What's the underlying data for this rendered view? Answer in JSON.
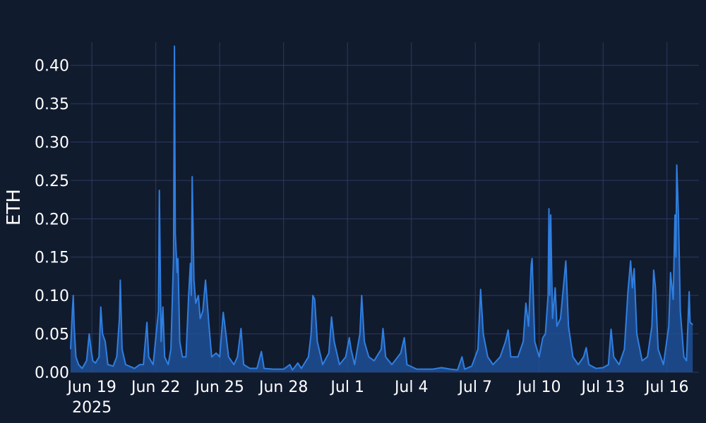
{
  "colors": {
    "background": "#111b2e",
    "line": "#2f7fe0",
    "fill": "#1f4f96",
    "grid": "#2b3b5e",
    "text": "#ffffff"
  },
  "chart_data": {
    "type": "area",
    "title": "",
    "xlabel": "",
    "ylabel": "ETH",
    "grid": true,
    "legend": "none",
    "xlim": [
      "2025-06-18T00:00",
      "2025-07-17T12:00"
    ],
    "ylim": [
      0,
      0.43
    ],
    "x_ticks": [
      {
        "label": "Jun 19",
        "date": "2025-06-19"
      },
      {
        "label": "Jun 22",
        "date": "2025-06-22"
      },
      {
        "label": "Jun 25",
        "date": "2025-06-25"
      },
      {
        "label": "Jun 28",
        "date": "2025-06-28"
      },
      {
        "label": "Jul 1",
        "date": "2025-07-01"
      },
      {
        "label": "Jul 4",
        "date": "2025-07-04"
      },
      {
        "label": "Jul 7",
        "date": "2025-07-07"
      },
      {
        "label": "Jul 10",
        "date": "2025-07-10"
      },
      {
        "label": "Jul 13",
        "date": "2025-07-13"
      },
      {
        "label": "Jul 16",
        "date": "2025-07-16"
      }
    ],
    "x_year_label": "2025",
    "y_ticks": [
      "0.00",
      "0.05",
      "0.10",
      "0.15",
      "0.20",
      "0.25",
      "0.30",
      "0.35",
      "0.40"
    ],
    "y_tick_values": [
      0,
      0.05,
      0.1,
      0.15,
      0.2,
      0.25,
      0.3,
      0.35,
      0.4
    ],
    "series": [
      {
        "points": [
          [
            "2025-06-18T00:00",
            0.03
          ],
          [
            "2025-06-18T02:00",
            0.08
          ],
          [
            "2025-06-18T03:00",
            0.1
          ],
          [
            "2025-06-18T04:00",
            0.06
          ],
          [
            "2025-06-18T06:00",
            0.02
          ],
          [
            "2025-06-18T09:00",
            0.01
          ],
          [
            "2025-06-18T13:00",
            0.005
          ],
          [
            "2025-06-18T18:00",
            0.015
          ],
          [
            "2025-06-18T21:00",
            0.05
          ],
          [
            "2025-06-18T23:00",
            0.03
          ],
          [
            "2025-06-19T01:00",
            0.015
          ],
          [
            "2025-06-19T04:00",
            0.012
          ],
          [
            "2025-06-19T08:00",
            0.02
          ],
          [
            "2025-06-19T10:00",
            0.085
          ],
          [
            "2025-06-19T12:00",
            0.05
          ],
          [
            "2025-06-19T15:00",
            0.04
          ],
          [
            "2025-06-19T18:00",
            0.01
          ],
          [
            "2025-06-20T00:00",
            0.008
          ],
          [
            "2025-06-20T04:00",
            0.02
          ],
          [
            "2025-06-20T07:00",
            0.07
          ],
          [
            "2025-06-20T08:00",
            0.12
          ],
          [
            "2025-06-20T10:00",
            0.03
          ],
          [
            "2025-06-20T14:00",
            0.01
          ],
          [
            "2025-06-21T00:00",
            0.005
          ],
          [
            "2025-06-21T06:00",
            0.01
          ],
          [
            "2025-06-21T10:00",
            0.01
          ],
          [
            "2025-06-21T14:00",
            0.065
          ],
          [
            "2025-06-21T16:00",
            0.02
          ],
          [
            "2025-06-21T21:00",
            0.01
          ],
          [
            "2025-06-22T03:00",
            0.08
          ],
          [
            "2025-06-22T04:00",
            0.237
          ],
          [
            "2025-06-22T06:00",
            0.04
          ],
          [
            "2025-06-22T08:00",
            0.085
          ],
          [
            "2025-06-22T10:00",
            0.02
          ],
          [
            "2025-06-22T14:00",
            0.01
          ],
          [
            "2025-06-22T17:00",
            0.03
          ],
          [
            "2025-06-22T20:00",
            0.15
          ],
          [
            "2025-06-22T21:00",
            0.425
          ],
          [
            "2025-06-22T22:00",
            0.18
          ],
          [
            "2025-06-23T00:00",
            0.13
          ],
          [
            "2025-06-23T01:00",
            0.148
          ],
          [
            "2025-06-23T03:00",
            0.04
          ],
          [
            "2025-06-23T06:00",
            0.02
          ],
          [
            "2025-06-23T10:00",
            0.02
          ],
          [
            "2025-06-23T13:00",
            0.1
          ],
          [
            "2025-06-23T15:00",
            0.142
          ],
          [
            "2025-06-23T16:00",
            0.1
          ],
          [
            "2025-06-23T17:00",
            0.255
          ],
          [
            "2025-06-23T19:00",
            0.12
          ],
          [
            "2025-06-23T21:00",
            0.09
          ],
          [
            "2025-06-24T00:00",
            0.1
          ],
          [
            "2025-06-24T02:00",
            0.07
          ],
          [
            "2025-06-24T05:00",
            0.08
          ],
          [
            "2025-06-24T08:00",
            0.12
          ],
          [
            "2025-06-24T12:00",
            0.06
          ],
          [
            "2025-06-24T15:00",
            0.02
          ],
          [
            "2025-06-24T20:00",
            0.025
          ],
          [
            "2025-06-25T00:00",
            0.02
          ],
          [
            "2025-06-25T04:00",
            0.078
          ],
          [
            "2025-06-25T07:00",
            0.05
          ],
          [
            "2025-06-25T10:00",
            0.02
          ],
          [
            "2025-06-25T16:00",
            0.01
          ],
          [
            "2025-06-25T20:00",
            0.02
          ],
          [
            "2025-06-26T00:00",
            0.057
          ],
          [
            "2025-06-26T03:00",
            0.01
          ],
          [
            "2025-06-26T10:00",
            0.005
          ],
          [
            "2025-06-26T18:00",
            0.005
          ],
          [
            "2025-06-26T23:00",
            0.027
          ],
          [
            "2025-06-27T02:00",
            0.005
          ],
          [
            "2025-06-27T12:00",
            0.004
          ],
          [
            "2025-06-28T00:00",
            0.004
          ],
          [
            "2025-06-28T07:00",
            0.01
          ],
          [
            "2025-06-28T10:00",
            0.003
          ],
          [
            "2025-06-28T16:00",
            0.012
          ],
          [
            "2025-06-28T20:00",
            0.005
          ],
          [
            "2025-06-29T04:00",
            0.02
          ],
          [
            "2025-06-29T07:00",
            0.05
          ],
          [
            "2025-06-29T09:00",
            0.1
          ],
          [
            "2025-06-29T11:00",
            0.095
          ],
          [
            "2025-06-29T14:00",
            0.04
          ],
          [
            "2025-06-29T20:00",
            0.01
          ],
          [
            "2025-06-30T03:00",
            0.025
          ],
          [
            "2025-06-30T06:00",
            0.072
          ],
          [
            "2025-06-30T09:00",
            0.04
          ],
          [
            "2025-06-30T15:00",
            0.01
          ],
          [
            "2025-06-30T22:00",
            0.02
          ],
          [
            "2025-07-01T02:00",
            0.045
          ],
          [
            "2025-07-01T04:00",
            0.03
          ],
          [
            "2025-07-01T08:00",
            0.01
          ],
          [
            "2025-07-01T14:00",
            0.05
          ],
          [
            "2025-07-01T16:00",
            0.1
          ],
          [
            "2025-07-01T19:00",
            0.04
          ],
          [
            "2025-07-02T00:00",
            0.02
          ],
          [
            "2025-07-02T06:00",
            0.015
          ],
          [
            "2025-07-02T14:00",
            0.03
          ],
          [
            "2025-07-02T16:00",
            0.057
          ],
          [
            "2025-07-02T19:00",
            0.02
          ],
          [
            "2025-07-03T02:00",
            0.01
          ],
          [
            "2025-07-03T12:00",
            0.025
          ],
          [
            "2025-07-03T16:00",
            0.045
          ],
          [
            "2025-07-03T19:00",
            0.01
          ],
          [
            "2025-07-04T06:00",
            0.004
          ],
          [
            "2025-07-05T00:00",
            0.004
          ],
          [
            "2025-07-05T10:00",
            0.006
          ],
          [
            "2025-07-05T20:00",
            0.004
          ],
          [
            "2025-07-06T04:00",
            0.003
          ],
          [
            "2025-07-06T09:00",
            0.02
          ],
          [
            "2025-07-06T12:00",
            0.004
          ],
          [
            "2025-07-06T20:00",
            0.008
          ],
          [
            "2025-07-07T03:00",
            0.03
          ],
          [
            "2025-07-07T06:00",
            0.108
          ],
          [
            "2025-07-07T09:00",
            0.05
          ],
          [
            "2025-07-07T14:00",
            0.02
          ],
          [
            "2025-07-07T20:00",
            0.01
          ],
          [
            "2025-07-08T04:00",
            0.02
          ],
          [
            "2025-07-08T10:00",
            0.04
          ],
          [
            "2025-07-08T13:00",
            0.055
          ],
          [
            "2025-07-08T16:00",
            0.02
          ],
          [
            "2025-07-09T00:00",
            0.02
          ],
          [
            "2025-07-09T06:00",
            0.04
          ],
          [
            "2025-07-09T09:00",
            0.09
          ],
          [
            "2025-07-09T12:00",
            0.06
          ],
          [
            "2025-07-09T15:00",
            0.14
          ],
          [
            "2025-07-09T16:00",
            0.148
          ],
          [
            "2025-07-09T19:00",
            0.04
          ],
          [
            "2025-07-10T00:00",
            0.02
          ],
          [
            "2025-07-10T04:00",
            0.045
          ],
          [
            "2025-07-10T07:00",
            0.05
          ],
          [
            "2025-07-10T10:00",
            0.1
          ],
          [
            "2025-07-10T11:00",
            0.213
          ],
          [
            "2025-07-10T12:00",
            0.1
          ],
          [
            "2025-07-10T13:00",
            0.205
          ],
          [
            "2025-07-10T15:00",
            0.07
          ],
          [
            "2025-07-10T18:00",
            0.11
          ],
          [
            "2025-07-10T20:00",
            0.06
          ],
          [
            "2025-07-11T00:00",
            0.07
          ],
          [
            "2025-07-11T04:00",
            0.12
          ],
          [
            "2025-07-11T06:00",
            0.145
          ],
          [
            "2025-07-11T09:00",
            0.06
          ],
          [
            "2025-07-11T14:00",
            0.02
          ],
          [
            "2025-07-11T20:00",
            0.01
          ],
          [
            "2025-07-12T02:00",
            0.02
          ],
          [
            "2025-07-12T05:00",
            0.032
          ],
          [
            "2025-07-12T08:00",
            0.01
          ],
          [
            "2025-07-12T16:00",
            0.005
          ],
          [
            "2025-07-13T00:00",
            0.006
          ],
          [
            "2025-07-13T06:00",
            0.01
          ],
          [
            "2025-07-13T09:00",
            0.056
          ],
          [
            "2025-07-13T12:00",
            0.02
          ],
          [
            "2025-07-13T18:00",
            0.01
          ],
          [
            "2025-07-14T00:00",
            0.03
          ],
          [
            "2025-07-14T04:00",
            0.105
          ],
          [
            "2025-07-14T07:00",
            0.145
          ],
          [
            "2025-07-14T09:00",
            0.11
          ],
          [
            "2025-07-14T11:00",
            0.135
          ],
          [
            "2025-07-14T14:00",
            0.05
          ],
          [
            "2025-07-14T20:00",
            0.015
          ],
          [
            "2025-07-15T02:00",
            0.02
          ],
          [
            "2025-07-15T07:00",
            0.06
          ],
          [
            "2025-07-15T09:00",
            0.133
          ],
          [
            "2025-07-15T11:00",
            0.11
          ],
          [
            "2025-07-15T14:00",
            0.03
          ],
          [
            "2025-07-15T20:00",
            0.01
          ],
          [
            "2025-07-16T02:00",
            0.06
          ],
          [
            "2025-07-16T04:00",
            0.13
          ],
          [
            "2025-07-16T07:00",
            0.095
          ],
          [
            "2025-07-16T09:00",
            0.205
          ],
          [
            "2025-07-16T10:00",
            0.15
          ],
          [
            "2025-07-16T11:00",
            0.27
          ],
          [
            "2025-07-16T13:00",
            0.2
          ],
          [
            "2025-07-16T15:00",
            0.08
          ],
          [
            "2025-07-16T19:00",
            0.02
          ],
          [
            "2025-07-16T22:00",
            0.015
          ],
          [
            "2025-07-17T01:00",
            0.105
          ],
          [
            "2025-07-17T02:00",
            0.065
          ],
          [
            "2025-07-17T05:00",
            0.062
          ]
        ]
      }
    ]
  }
}
